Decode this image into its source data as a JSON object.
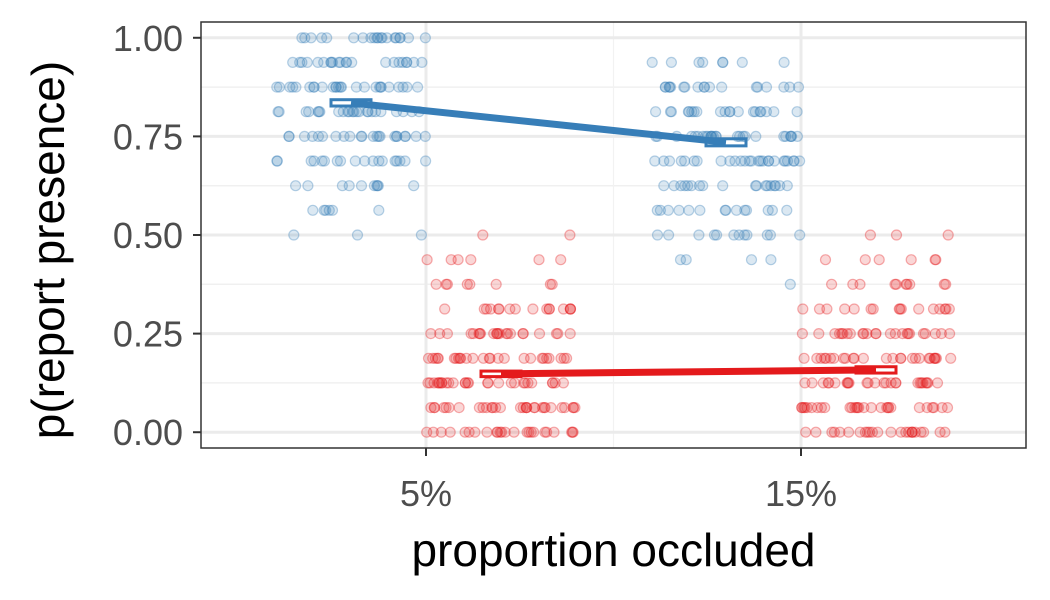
{
  "chart_data": {
    "type": "scatter",
    "xlabel": "proportion occluded",
    "ylabel": "p(report presence)",
    "categories": [
      "5%",
      "15%"
    ],
    "ylim": [
      -0.04,
      1.04
    ],
    "yticks": [
      "0.00",
      "0.25",
      "0.50",
      "0.75",
      "1.00"
    ],
    "ytick_values": [
      0,
      0.25,
      0.5,
      0.75,
      1.0
    ],
    "grid": true,
    "legend": "none",
    "series": [
      {
        "color": "#377eb8",
        "offset": -0.2,
        "means": [
          0.835,
          0.735
        ],
        "error": [
          0.008,
          0.009
        ],
        "points": [
          [
            1.0,
            16
          ],
          [
            0.9375,
            22
          ],
          [
            0.875,
            26
          ],
          [
            0.8125,
            24
          ],
          [
            0.75,
            22
          ],
          [
            0.6875,
            18
          ],
          [
            0.625,
            10
          ],
          [
            0.5625,
            6
          ],
          [
            0.5,
            3
          ],
          [
            1.0,
            4
          ],
          [
            0.9375,
            8
          ],
          [
            0.875,
            18
          ],
          [
            0.8125,
            20
          ],
          [
            0.75,
            26
          ],
          [
            0.6875,
            26
          ],
          [
            0.625,
            18
          ],
          [
            0.5625,
            14
          ],
          [
            0.5,
            12
          ],
          [
            0.4375,
            4
          ],
          [
            0.375,
            1
          ]
        ]
      },
      {
        "color": "#e41a1c",
        "offset": 0.2,
        "means": [
          0.148,
          0.158
        ],
        "error": [
          0.007,
          0.008
        ],
        "points": [
          [
            0.0,
            24
          ],
          [
            0.0625,
            30
          ],
          [
            0.125,
            28
          ],
          [
            0.1875,
            26
          ],
          [
            0.25,
            22
          ],
          [
            0.3125,
            16
          ],
          [
            0.375,
            8
          ],
          [
            0.4375,
            6
          ],
          [
            0.5,
            2
          ],
          [
            0.0,
            24
          ],
          [
            0.0625,
            28
          ],
          [
            0.125,
            26
          ],
          [
            0.1875,
            26
          ],
          [
            0.25,
            24
          ],
          [
            0.3125,
            16
          ],
          [
            0.375,
            10
          ],
          [
            0.4375,
            6
          ],
          [
            0.5,
            3
          ]
        ]
      }
    ]
  }
}
